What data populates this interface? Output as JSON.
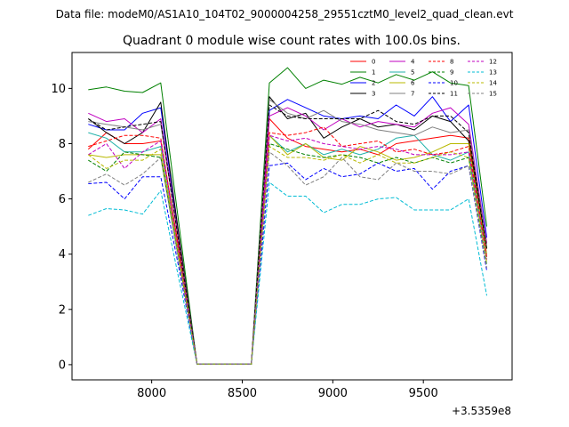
{
  "figure": {
    "suptitle": "Data file: modeM0/AS1A10_104T02_9000004258_29551cztM0_level2_quad_clean.evt",
    "offset_label": "+3.5359e8"
  },
  "chart_data": {
    "type": "line",
    "title": "Quadrant 0 module wise count rates with 100.0s bins.",
    "xlabel": "",
    "ylabel": "",
    "x_offset": 353590000,
    "xlim": [
      7560,
      9990
    ],
    "ylim": [
      -0.55,
      11.3
    ],
    "xticks": [
      8000,
      8500,
      9000,
      9500
    ],
    "xtick_labels": [
      "8000",
      "8500",
      "9000",
      "9500"
    ],
    "yticks": [
      0,
      2,
      4,
      6,
      8,
      10
    ],
    "ytick_labels": [
      "0",
      "2",
      "4",
      "6",
      "8",
      "10"
    ],
    "grid": false,
    "legend": {
      "location": "top-right",
      "columns": 4
    },
    "x": [
      7650,
      7750,
      7850,
      7950,
      8050,
      8150,
      8250,
      8350,
      8450,
      8550,
      8650,
      8750,
      8850,
      8950,
      9050,
      9150,
      9250,
      9350,
      9450,
      9550,
      9650,
      9750,
      9850
    ],
    "series": [
      {
        "name": "0",
        "color": "#ff0000",
        "dash": false,
        "values": [
          7.8,
          8.4,
          8.0,
          8.0,
          8.1,
          4.2,
          0.02,
          0.02,
          0.02,
          0.02,
          8.9,
          8.2,
          7.9,
          7.8,
          7.7,
          7.8,
          7.6,
          8.0,
          8.1,
          8.2,
          8.3,
          8.2,
          4.4
        ]
      },
      {
        "name": "1",
        "color": "#008000",
        "dash": false,
        "values": [
          9.95,
          10.05,
          9.9,
          9.85,
          10.2,
          5.1,
          0.02,
          0.02,
          0.02,
          0.02,
          10.2,
          10.75,
          10.0,
          10.3,
          10.15,
          10.4,
          10.2,
          10.5,
          10.3,
          10.6,
          10.2,
          10.1,
          5.0
        ]
      },
      {
        "name": "2",
        "color": "#0000ff",
        "dash": false,
        "values": [
          8.7,
          8.5,
          8.5,
          9.1,
          9.3,
          4.6,
          0.02,
          0.02,
          0.02,
          0.02,
          9.2,
          9.6,
          9.3,
          9.0,
          8.9,
          9.0,
          8.9,
          9.4,
          9.0,
          9.7,
          8.8,
          9.4,
          4.6
        ]
      },
      {
        "name": "3",
        "color": "#000000",
        "dash": false,
        "values": [
          8.9,
          8.4,
          8.0,
          8.4,
          9.5,
          4.7,
          0.02,
          0.02,
          0.02,
          0.02,
          9.7,
          8.9,
          9.1,
          8.2,
          8.6,
          8.9,
          8.6,
          8.7,
          8.5,
          9.0,
          8.8,
          8.1,
          4.2
        ]
      },
      {
        "name": "4",
        "color": "#c000c0",
        "dash": false,
        "values": [
          9.1,
          8.8,
          8.9,
          8.4,
          8.9,
          4.5,
          0.02,
          0.02,
          0.02,
          0.02,
          9.0,
          9.3,
          9.0,
          8.5,
          8.9,
          8.6,
          8.8,
          8.7,
          8.6,
          9.1,
          9.3,
          8.7,
          4.4
        ]
      },
      {
        "name": "5",
        "color": "#20b2aa",
        "dash": false,
        "values": [
          8.4,
          8.2,
          7.7,
          7.7,
          7.9,
          4.0,
          0.02,
          0.02,
          0.02,
          0.02,
          8.3,
          7.7,
          8.0,
          7.6,
          7.8,
          7.6,
          7.8,
          8.2,
          8.3,
          7.6,
          7.4,
          7.7,
          3.9
        ]
      },
      {
        "name": "6",
        "color": "#b8b800",
        "dash": false,
        "values": [
          7.6,
          7.5,
          7.6,
          7.6,
          7.6,
          3.9,
          0.02,
          0.02,
          0.02,
          0.02,
          8.3,
          7.6,
          8.0,
          7.5,
          7.4,
          7.9,
          7.7,
          7.4,
          7.5,
          7.7,
          8.0,
          8.0,
          4.0
        ]
      },
      {
        "name": "7",
        "color": "#808080",
        "dash": false,
        "values": [
          8.8,
          8.7,
          8.6,
          8.5,
          8.7,
          4.4,
          0.02,
          0.02,
          0.02,
          0.02,
          9.6,
          9.1,
          8.9,
          9.2,
          8.8,
          8.7,
          8.5,
          8.4,
          8.3,
          8.6,
          8.4,
          8.5,
          4.3
        ]
      },
      {
        "name": "8",
        "color": "#ff0000",
        "dash": true,
        "values": [
          7.9,
          8.1,
          8.3,
          8.3,
          8.2,
          4.1,
          0.02,
          0.02,
          0.02,
          0.02,
          8.4,
          8.3,
          8.4,
          8.6,
          7.9,
          8.0,
          8.1,
          7.7,
          7.8,
          7.6,
          7.7,
          7.9,
          3.9
        ]
      },
      {
        "name": "9",
        "color": "#008000",
        "dash": true,
        "values": [
          7.4,
          7.0,
          7.7,
          7.6,
          7.5,
          3.8,
          0.02,
          0.02,
          0.02,
          0.02,
          8.0,
          7.8,
          7.6,
          7.5,
          7.6,
          7.5,
          7.3,
          7.5,
          7.3,
          7.5,
          7.3,
          7.5,
          3.6
        ]
      },
      {
        "name": "10",
        "color": "#0000ff",
        "dash": true,
        "values": [
          6.55,
          6.6,
          6.0,
          6.8,
          6.8,
          3.5,
          0.02,
          0.02,
          0.02,
          0.02,
          7.2,
          7.3,
          6.7,
          7.1,
          6.8,
          6.9,
          7.3,
          7.0,
          7.1,
          6.35,
          7.0,
          7.2,
          3.4
        ]
      },
      {
        "name": "11",
        "color": "#000000",
        "dash": true,
        "values": [
          8.9,
          8.5,
          8.6,
          8.7,
          8.8,
          4.4,
          0.02,
          0.02,
          0.02,
          0.02,
          9.4,
          9.0,
          8.9,
          8.9,
          8.9,
          8.9,
          9.2,
          8.8,
          8.7,
          9.0,
          9.0,
          8.4,
          4.2
        ]
      },
      {
        "name": "12",
        "color": "#c000c0",
        "dash": true,
        "values": [
          7.6,
          8.0,
          7.1,
          7.7,
          8.1,
          4.0,
          0.02,
          0.02,
          0.02,
          0.02,
          8.3,
          8.1,
          8.2,
          8.0,
          7.9,
          7.8,
          7.9,
          7.8,
          7.6,
          7.6,
          7.6,
          7.7,
          3.8
        ]
      },
      {
        "name": "13",
        "color": "#00bcd4",
        "dash": true,
        "values": [
          5.4,
          5.65,
          5.6,
          5.45,
          6.3,
          3.1,
          0.02,
          0.02,
          0.02,
          0.02,
          6.6,
          6.1,
          6.1,
          5.5,
          5.8,
          5.8,
          6.0,
          6.05,
          5.6,
          5.6,
          5.6,
          6.0,
          2.5
        ]
      },
      {
        "name": "14",
        "color": "#b8b800",
        "dash": true,
        "values": [
          7.6,
          7.1,
          7.4,
          7.4,
          7.8,
          3.9,
          0.02,
          0.02,
          0.02,
          0.02,
          7.9,
          7.5,
          7.5,
          7.4,
          7.6,
          7.3,
          7.6,
          7.3,
          7.3,
          7.5,
          7.7,
          7.5,
          3.7
        ]
      },
      {
        "name": "15",
        "color": "#808080",
        "dash": true,
        "values": [
          6.6,
          6.9,
          6.5,
          6.9,
          7.5,
          3.7,
          0.02,
          0.02,
          0.02,
          0.02,
          7.7,
          7.2,
          6.5,
          6.8,
          7.5,
          6.8,
          6.7,
          7.3,
          7.0,
          7.0,
          6.9,
          7.2,
          3.5
        ]
      }
    ]
  }
}
